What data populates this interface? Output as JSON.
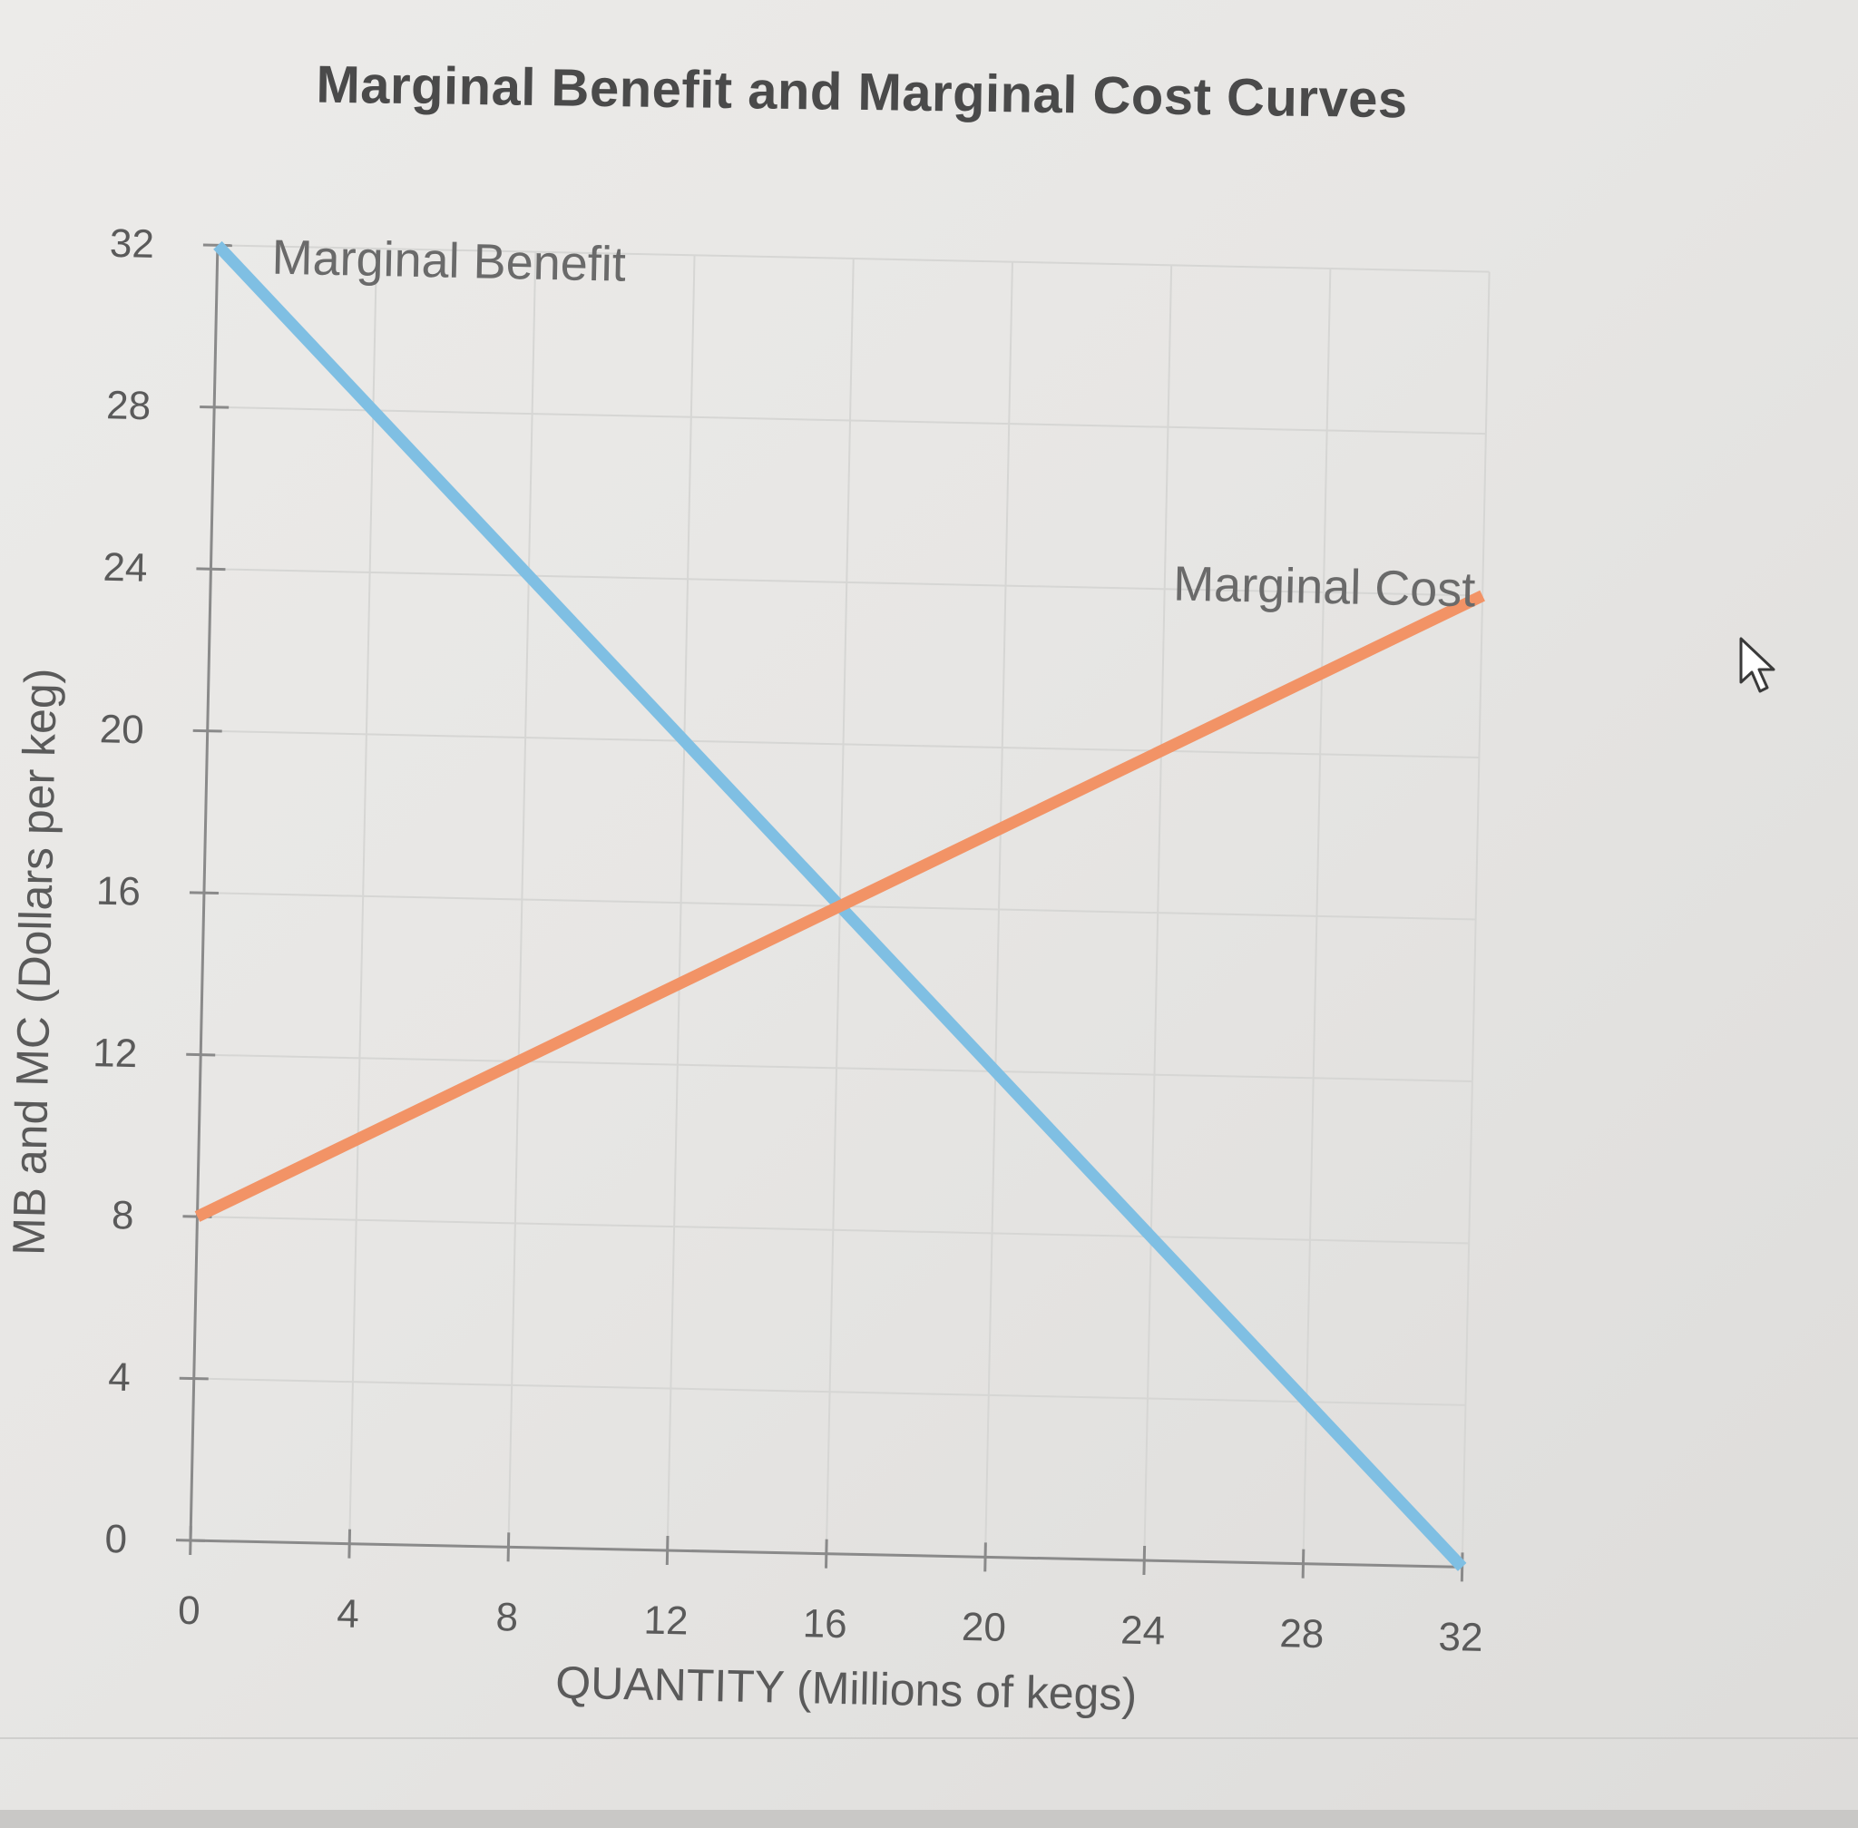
{
  "chart_data": {
    "type": "line",
    "title": "Marginal Benefit and Marginal Cost Curves",
    "xlabel": "QUANTITY (Millions of kegs)",
    "ylabel": "MB and MC (Dollars per keg)",
    "xlim": [
      0,
      32
    ],
    "ylim": [
      0,
      32
    ],
    "xticks": [
      0,
      4,
      8,
      12,
      16,
      20,
      24,
      28,
      32
    ],
    "yticks": [
      0,
      4,
      8,
      12,
      16,
      20,
      24,
      28,
      32
    ],
    "grid": true,
    "series": [
      {
        "name": "Marginal Benefit",
        "color": "#7fbfe3",
        "x": [
          0,
          32
        ],
        "y": [
          32,
          0
        ]
      },
      {
        "name": "Marginal Cost",
        "color": "#f29366",
        "x": [
          0,
          32
        ],
        "y": [
          8,
          24
        ]
      }
    ]
  }
}
